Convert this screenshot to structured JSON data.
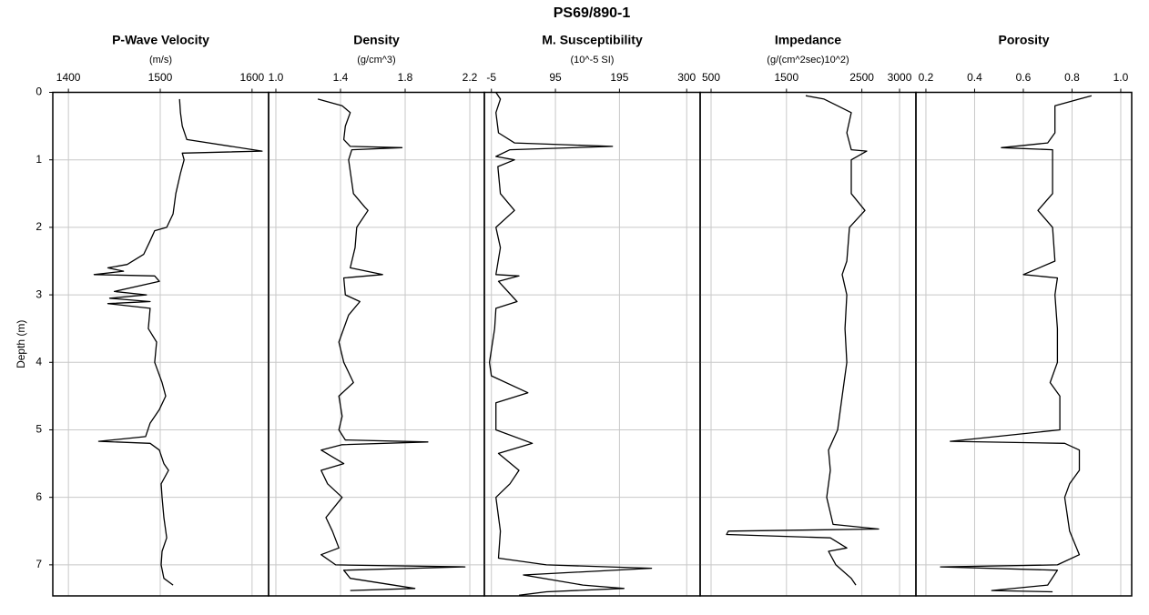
{
  "title": "PS69/890-1",
  "chart_data": [
    {
      "type": "line",
      "title": "P-Wave Velocity",
      "subtitle": "(m/s)",
      "ylabel": "Depth (m)",
      "ylim": [
        0,
        7.46
      ],
      "yticks": [
        0,
        1,
        2,
        3,
        4,
        5,
        6,
        7
      ],
      "xlim": [
        1383,
        1618
      ],
      "xticks": [
        1400,
        1500,
        1600
      ],
      "depth": [
        0.1,
        0.3,
        0.5,
        0.7,
        0.87,
        0.9,
        1.0,
        1.2,
        1.5,
        1.8,
        2.0,
        2.05,
        2.2,
        2.4,
        2.55,
        2.6,
        2.65,
        2.7,
        2.72,
        2.8,
        2.95,
        3.0,
        3.05,
        3.1,
        3.13,
        3.2,
        3.5,
        3.7,
        4.0,
        4.3,
        4.5,
        4.7,
        4.9,
        5.1,
        5.17,
        5.2,
        5.3,
        5.5,
        5.6,
        5.8,
        6.0,
        6.3,
        6.6,
        6.8,
        7.0,
        7.2,
        7.3
      ],
      "values": [
        1521,
        1522,
        1524,
        1529,
        1611,
        1524,
        1526,
        1522,
        1517,
        1514,
        1507,
        1494,
        1489,
        1482,
        1464,
        1443,
        1460,
        1428,
        1494,
        1499,
        1450,
        1485,
        1445,
        1489,
        1443,
        1489,
        1487,
        1496,
        1494,
        1502,
        1506,
        1499,
        1489,
        1484,
        1433,
        1489,
        1499,
        1504,
        1509,
        1501,
        1502,
        1504,
        1507,
        1502,
        1501,
        1504,
        1514
      ]
    },
    {
      "type": "line",
      "title": "Density",
      "subtitle": "(g/cm^3)",
      "xlim": [
        0.955,
        2.29
      ],
      "xticks": [
        {
          "value": 1,
          "label": "1.0"
        },
        1.4,
        1.8,
        2.2
      ],
      "depth": [
        0.1,
        0.2,
        0.3,
        0.5,
        0.7,
        0.8,
        0.82,
        0.85,
        1.0,
        1.5,
        1.7,
        1.75,
        2.0,
        2.3,
        2.6,
        2.7,
        2.75,
        3.0,
        3.1,
        3.3,
        3.7,
        4.0,
        4.3,
        4.5,
        4.8,
        5.0,
        5.15,
        5.18,
        5.22,
        5.3,
        5.4,
        5.5,
        5.6,
        5.8,
        6.0,
        6.3,
        6.5,
        6.75,
        6.85,
        7.0,
        7.03,
        7.08,
        7.2,
        7.35,
        7.38
      ],
      "values": [
        1.26,
        1.41,
        1.46,
        1.43,
        1.42,
        1.46,
        1.78,
        1.47,
        1.45,
        1.48,
        1.55,
        1.57,
        1.5,
        1.49,
        1.46,
        1.66,
        1.42,
        1.43,
        1.52,
        1.45,
        1.39,
        1.42,
        1.48,
        1.39,
        1.41,
        1.39,
        1.43,
        1.94,
        1.41,
        1.28,
        1.35,
        1.42,
        1.28,
        1.32,
        1.41,
        1.31,
        1.35,
        1.39,
        1.28,
        1.37,
        2.17,
        1.42,
        1.46,
        1.86,
        1.46
      ]
    },
    {
      "type": "line",
      "title": "M. Susceptibility",
      "subtitle": "(10^-5 SI)",
      "xlim": [
        -16,
        321
      ],
      "xticks": [
        -5,
        95,
        195,
        300
      ],
      "depth": [
        0.0,
        0.1,
        0.3,
        0.6,
        0.75,
        0.8,
        0.85,
        0.95,
        1.0,
        1.1,
        1.5,
        1.75,
        2.0,
        2.3,
        2.7,
        2.72,
        2.8,
        3.1,
        3.2,
        3.5,
        4.0,
        4.2,
        4.45,
        4.6,
        5.0,
        5.2,
        5.35,
        5.6,
        5.8,
        6.0,
        6.5,
        6.9,
        7.0,
        7.05,
        7.15,
        7.3,
        7.35,
        7.4,
        7.45
      ],
      "values": [
        2,
        9,
        2,
        6,
        31,
        184,
        24,
        2,
        31,
        5,
        9,
        31,
        2,
        9,
        2,
        38,
        6,
        35,
        2,
        0,
        -8,
        -5,
        52,
        2,
        2,
        59,
        6,
        38,
        24,
        2,
        9,
        6,
        81,
        245,
        45,
        138,
        202,
        81,
        38
      ]
    },
    {
      "type": "line",
      "title": "Impedance",
      "subtitle": "(g/(cm^2sec)10^2)",
      "xlim": [
        355,
        3217
      ],
      "xticks": [
        500,
        1500,
        2500,
        3000
      ],
      "depth": [
        0.05,
        0.1,
        0.2,
        0.3,
        0.6,
        0.85,
        0.87,
        1.0,
        1.5,
        1.75,
        2.0,
        2.5,
        2.7,
        3.0,
        3.5,
        4.0,
        4.5,
        5.0,
        5.3,
        5.6,
        6.0,
        6.4,
        6.47,
        6.5,
        6.55,
        6.6,
        6.75,
        6.8,
        7.0,
        7.2,
        7.3
      ],
      "values": [
        1756,
        1998,
        2179,
        2360,
        2300,
        2360,
        2565,
        2360,
        2360,
        2541,
        2336,
        2300,
        2239,
        2300,
        2276,
        2300,
        2239,
        2179,
        2058,
        2082,
        2034,
        2118,
        2722,
        729,
        705,
        2082,
        2300,
        2058,
        2155,
        2360,
        2420
      ]
    },
    {
      "type": "line",
      "title": "Porosity",
      "xlim": [
        0.159,
        1.045
      ],
      "xticks": [
        0.2,
        0.4,
        0.6,
        0.8,
        {
          "value": 1,
          "label": "1.0"
        }
      ],
      "depth": [
        0.05,
        0.1,
        0.2,
        0.3,
        0.6,
        0.75,
        0.82,
        0.85,
        1.0,
        1.5,
        1.75,
        2.0,
        2.5,
        2.7,
        2.75,
        3.0,
        3.5,
        4.0,
        4.3,
        4.5,
        5.0,
        5.17,
        5.2,
        5.3,
        5.6,
        5.8,
        6.0,
        6.5,
        6.85,
        7.0,
        7.03,
        7.08,
        7.3,
        7.38,
        7.4
      ],
      "values": [
        0.88,
        0.83,
        0.73,
        0.73,
        0.73,
        0.7,
        0.51,
        0.72,
        0.72,
        0.72,
        0.66,
        0.72,
        0.73,
        0.6,
        0.74,
        0.73,
        0.74,
        0.74,
        0.71,
        0.75,
        0.75,
        0.3,
        0.77,
        0.83,
        0.83,
        0.79,
        0.77,
        0.79,
        0.83,
        0.74,
        0.26,
        0.74,
        0.7,
        0.47,
        0.72
      ]
    }
  ]
}
